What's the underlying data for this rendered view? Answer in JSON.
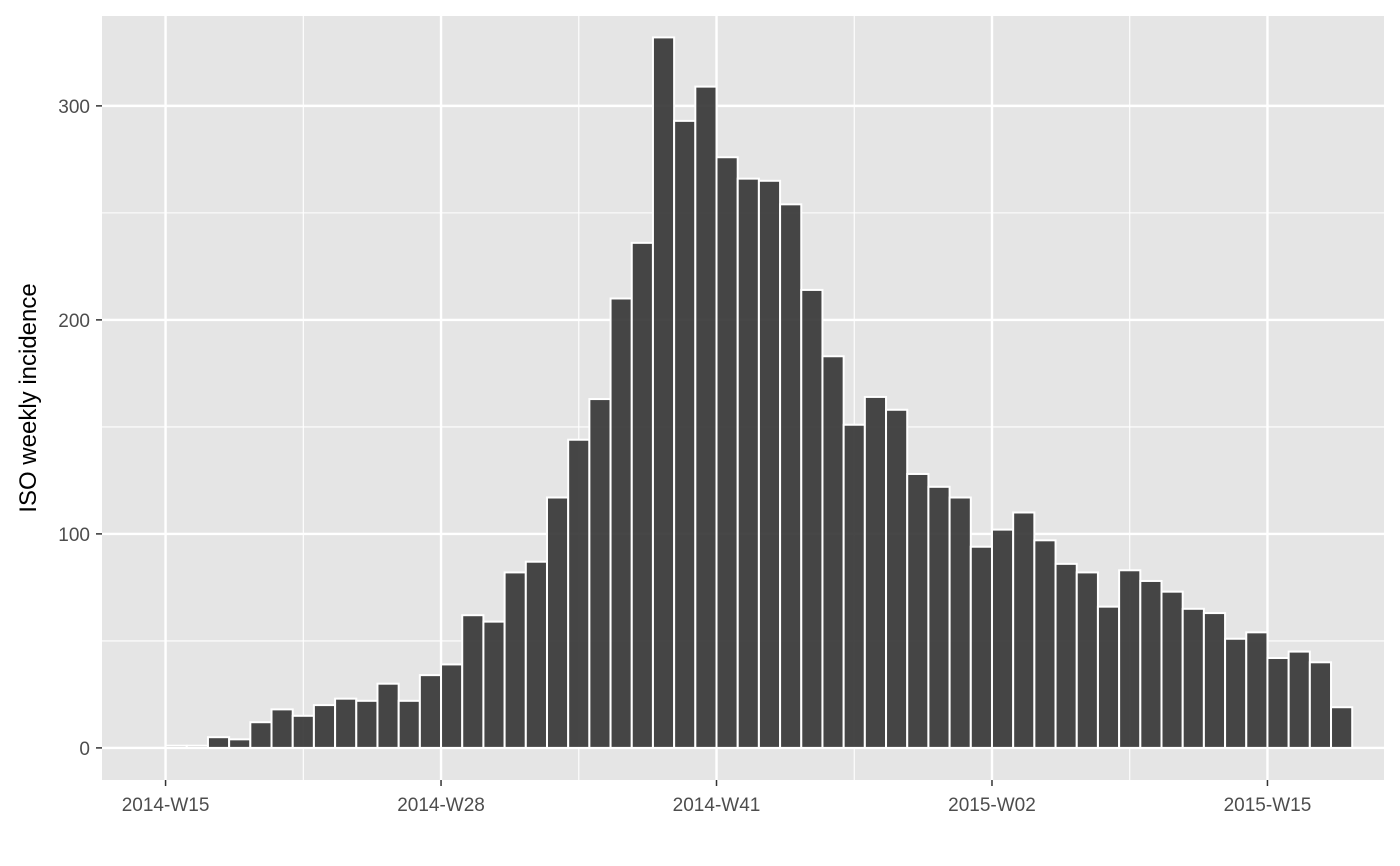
{
  "chart_data": {
    "type": "bar",
    "xlabel": "",
    "ylabel": "ISO weekly incidence",
    "colors": {
      "panel": "#e5e5e5",
      "grid": "#ffffff",
      "bar_fill": "#333333",
      "bar_outline": "#ffffff"
    },
    "grid": true,
    "legend": "none",
    "ylim": [
      -15,
      342
    ],
    "yticks": [
      0,
      100,
      200,
      300
    ],
    "xticks": [
      {
        "week": 0,
        "label": "2014-W15"
      },
      {
        "week": 13,
        "label": "2014-W28"
      },
      {
        "week": 26,
        "label": "2014-W41"
      },
      {
        "week": 39,
        "label": "2015-W02"
      },
      {
        "week": 52,
        "label": "2015-W15"
      }
    ],
    "categories": [
      "2014-W15",
      "2014-W16",
      "2014-W17",
      "2014-W18",
      "2014-W19",
      "2014-W20",
      "2014-W21",
      "2014-W22",
      "2014-W23",
      "2014-W24",
      "2014-W25",
      "2014-W26",
      "2014-W27",
      "2014-W28",
      "2014-W29",
      "2014-W30",
      "2014-W31",
      "2014-W32",
      "2014-W33",
      "2014-W34",
      "2014-W35",
      "2014-W36",
      "2014-W37",
      "2014-W38",
      "2014-W39",
      "2014-W40",
      "2014-W41",
      "2014-W42",
      "2014-W43",
      "2014-W44",
      "2014-W45",
      "2014-W46",
      "2014-W47",
      "2014-W48",
      "2014-W49",
      "2014-W50",
      "2014-W51",
      "2014-W52",
      "2015-W01",
      "2015-W02",
      "2015-W03",
      "2015-W04",
      "2015-W05",
      "2015-W06",
      "2015-W07",
      "2015-W08",
      "2015-W09",
      "2015-W10",
      "2015-W11",
      "2015-W12",
      "2015-W13",
      "2015-W14",
      "2015-W15",
      "2015-W16",
      "2015-W17",
      "2015-W18"
    ],
    "values": [
      1,
      1,
      5,
      4,
      12,
      18,
      15,
      20,
      23,
      22,
      30,
      22,
      34,
      39,
      62,
      59,
      82,
      87,
      117,
      144,
      163,
      210,
      236,
      332,
      293,
      309,
      276,
      266,
      265,
      254,
      214,
      183,
      151,
      164,
      158,
      128,
      122,
      117,
      94,
      102,
      110,
      97,
      86,
      82,
      66,
      83,
      78,
      73,
      65,
      63,
      51,
      54,
      42,
      45,
      40,
      19
    ]
  }
}
